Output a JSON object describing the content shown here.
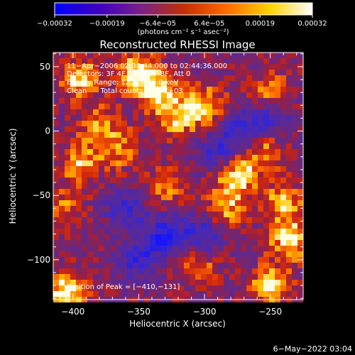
{
  "chart_data": {
    "type": "heatmap",
    "title": "Reconstructed RHESSI Image",
    "xlabel": "Heliocentric X (arcsec)",
    "ylabel": "Heliocentric Y (arcsec)",
    "xlim": [
      -415,
      -225
    ],
    "ylim": [
      -131,
      61
    ],
    "xticks": [
      -400,
      -350,
      -300,
      -250
    ],
    "xtick_labels": [
      "−400",
      "−350",
      "−300",
      "−250"
    ],
    "yticks": [
      -100,
      -50,
      0,
      50
    ],
    "ytick_labels": [
      "−100",
      "−50",
      "0",
      "50"
    ],
    "colorbar": {
      "range": [
        -0.00032,
        0.00032
      ],
      "ticks": [
        -0.00032,
        -0.00019,
        -6.4e-05,
        6.4e-05,
        0.00019,
        0.00032
      ],
      "tick_labels": [
        "−0.00032",
        "−0.00019",
        "−6.4e−05",
        "6.4e−05",
        "0.00019",
        "0.00032"
      ],
      "label": "(photons cm⁻² s⁻¹ asec⁻²)",
      "colors": [
        "#0000ff",
        "#3d00c0",
        "#7a208a",
        "#c03000",
        "#ff6a00",
        "#ffd200",
        "#ffffff"
      ]
    },
    "annotations": [
      "11−Apr−2006 02:38:44.000 to 02:44:36.000",
      "Detectors: 3F 4F 5F 6F 7F 8F, Att 0",
      "Energy Range: 12.0 − 25.0 keV",
      "Clean      Total counts: 7.44E+03"
    ],
    "peak_label": "Position of Peak = [−410,−131]",
    "peak_position": [
      -410,
      -131
    ],
    "hotspots": [
      {
        "x": -350,
        "y": 45,
        "v": 1.0
      },
      {
        "x": -335,
        "y": 30,
        "v": 0.8
      },
      {
        "x": -320,
        "y": 10,
        "v": 0.7
      },
      {
        "x": -300,
        "y": 20,
        "v": 0.75
      },
      {
        "x": -395,
        "y": 40,
        "v": 0.8
      },
      {
        "x": -380,
        "y": 5,
        "v": 0.6
      },
      {
        "x": -395,
        "y": -25,
        "v": 0.7
      },
      {
        "x": -365,
        "y": -15,
        "v": 0.6
      },
      {
        "x": -405,
        "y": -60,
        "v": 0.5
      },
      {
        "x": -275,
        "y": -35,
        "v": 0.9
      },
      {
        "x": -255,
        "y": -15,
        "v": 0.7
      },
      {
        "x": -240,
        "y": -55,
        "v": 0.75
      },
      {
        "x": -235,
        "y": -85,
        "v": 0.9
      },
      {
        "x": -250,
        "y": 30,
        "v": 0.6
      },
      {
        "x": -250,
        "y": -120,
        "v": 0.85
      },
      {
        "x": -405,
        "y": -125,
        "v": 1.0
      },
      {
        "x": -305,
        "y": -105,
        "v": 0.55
      },
      {
        "x": -285,
        "y": -60,
        "v": 0.7
      },
      {
        "x": -330,
        "y": -45,
        "v": 0.5
      }
    ],
    "coldspots": [
      {
        "x": -330,
        "y": -80,
        "v": -0.8
      },
      {
        "x": -350,
        "y": -100,
        "v": -0.7
      },
      {
        "x": -300,
        "y": -80,
        "v": -0.7
      },
      {
        "x": -270,
        "y": 0,
        "v": -0.7
      },
      {
        "x": -250,
        "y": 10,
        "v": -0.6
      },
      {
        "x": -290,
        "y": -15,
        "v": -0.6
      },
      {
        "x": -360,
        "y": -60,
        "v": -0.6
      }
    ]
  },
  "footer": {
    "timestamp": "6−May−2022 03:04"
  }
}
